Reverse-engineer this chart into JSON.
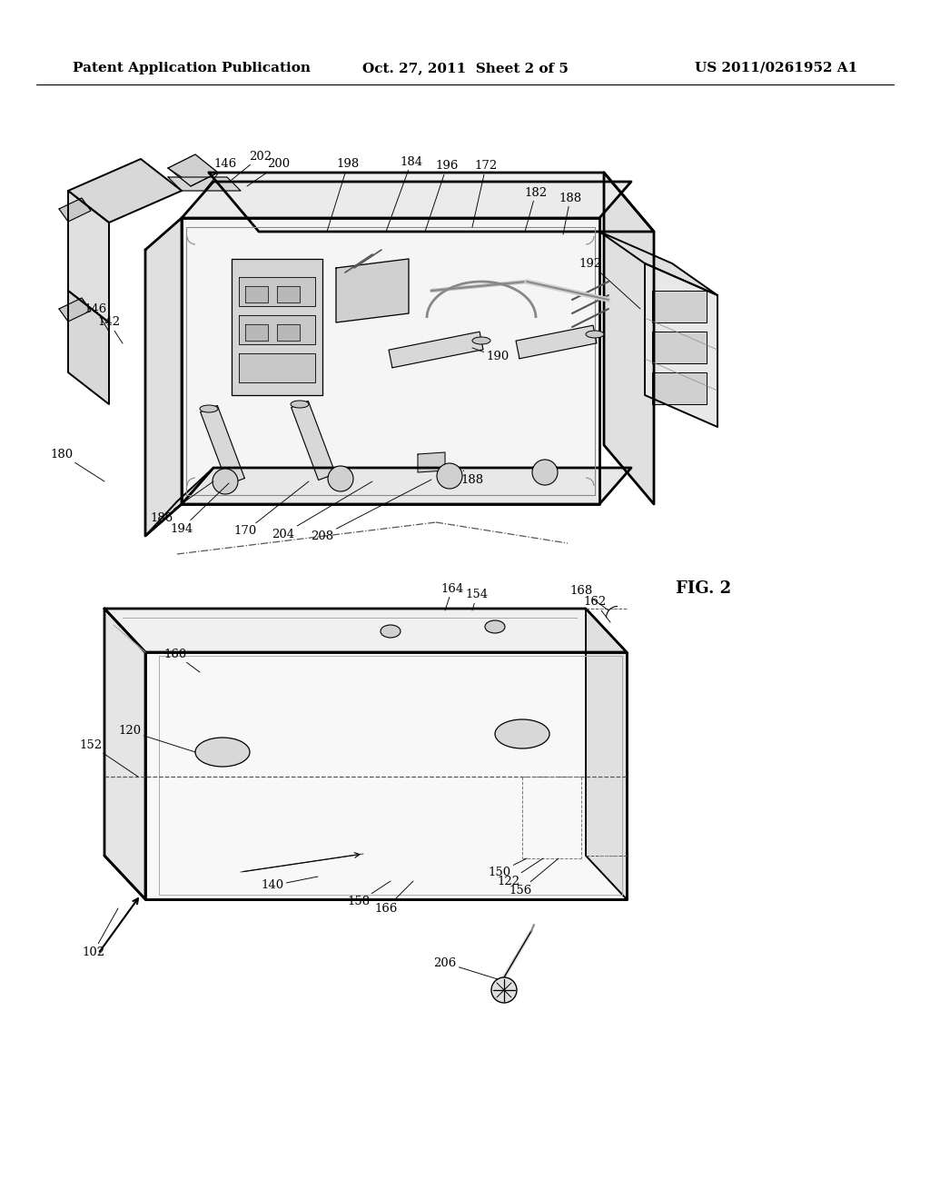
{
  "title_left": "Patent Application Publication",
  "title_mid": "Oct. 27, 2011  Sheet 2 of 5",
  "title_right": "US 2011/0261952 A1",
  "fig_label": "FIG. 2",
  "bg_color": "#ffffff",
  "lc": "#000000",
  "gray1": "#e8e8e8",
  "gray2": "#d8d8d8",
  "gray3": "#f5f5f5",
  "label_fontsize": 9.5,
  "header_fontsize": 11,
  "lw_main": 1.4,
  "lw_thin": 0.7
}
